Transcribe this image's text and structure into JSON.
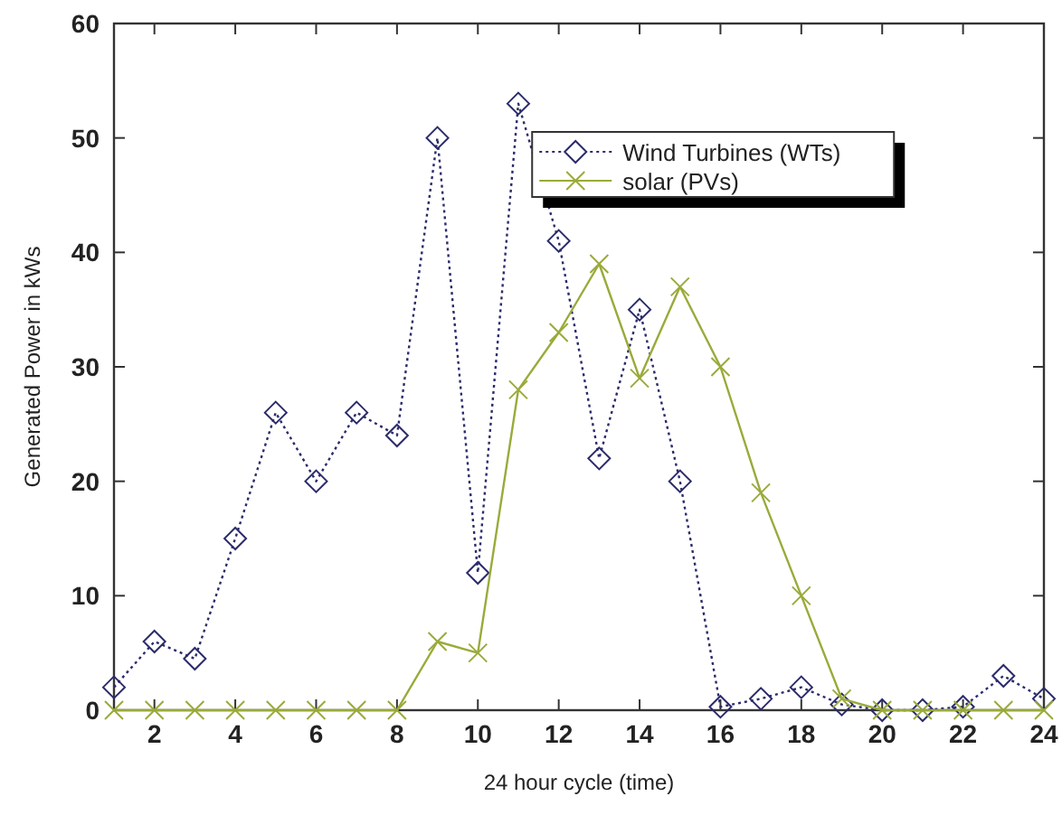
{
  "chart_data": {
    "type": "line",
    "xlabel": "24 hour cycle (time)",
    "ylabel": "Generated Power in kWs",
    "x": [
      1,
      2,
      3,
      4,
      5,
      6,
      7,
      8,
      9,
      10,
      11,
      12,
      13,
      14,
      15,
      16,
      17,
      18,
      19,
      20,
      21,
      22,
      23,
      24
    ],
    "series": [
      {
        "name": "Wind Turbines (WTs)",
        "color": "#2b2b6b",
        "marker": "diamond",
        "line_style": "dotted",
        "values": [
          2,
          6,
          4.5,
          15,
          26,
          20,
          26,
          24,
          50,
          12,
          53,
          41,
          22,
          35,
          20,
          0.3,
          1,
          2,
          0.5,
          0,
          0,
          0.3,
          3,
          1
        ]
      },
      {
        "name": "solar (PVs)",
        "color": "#9aaa3a",
        "marker": "cross",
        "line_style": "solid",
        "values": [
          0,
          0,
          0,
          0,
          0,
          0,
          0,
          0,
          6,
          5,
          28,
          33,
          39,
          29,
          37,
          30,
          19,
          10,
          1,
          0,
          0,
          0,
          0,
          0
        ]
      }
    ],
    "xlim": [
      1,
      24
    ],
    "xticks": [
      2,
      4,
      6,
      8,
      10,
      12,
      14,
      16,
      18,
      20,
      22,
      24
    ],
    "ylim": [
      0,
      60
    ],
    "yticks": [
      0,
      10,
      20,
      30,
      40,
      50,
      60
    ],
    "grid": false,
    "legend": "top right"
  }
}
